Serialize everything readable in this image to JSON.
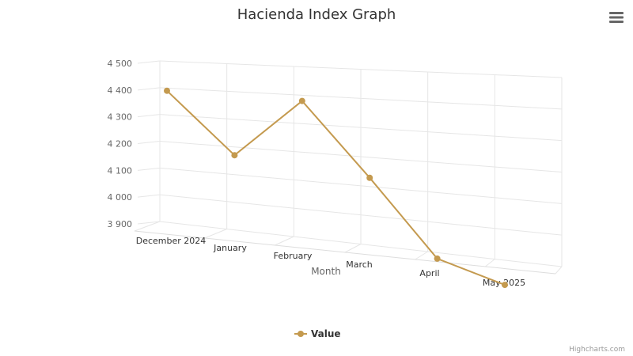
{
  "chart_data": {
    "type": "line",
    "title": "Hacienda Index Graph",
    "xlabel": "Month",
    "ylabel": "",
    "categories": [
      "December 2024",
      "January",
      "February",
      "March",
      "April",
      "May 2025"
    ],
    "series": [
      {
        "name": "Value",
        "values": [
          4390,
          4170,
          4380,
          4130,
          3880,
          3820
        ]
      }
    ],
    "ylim": [
      3900,
      4500
    ],
    "yticks": [
      3900,
      4000,
      4100,
      4200,
      4300,
      4400,
      4500
    ],
    "ytick_labels": [
      "3 900",
      "4 000",
      "4 100",
      "4 200",
      "4 300",
      "4 400",
      "4 500"
    ],
    "grid": true,
    "legend": "bottom-center",
    "series_color": "#c49a4f",
    "grid_color": "#e6e6e6"
  },
  "credits": "Highcharts.com",
  "menu": {
    "icon": "hamburger-menu-icon"
  }
}
